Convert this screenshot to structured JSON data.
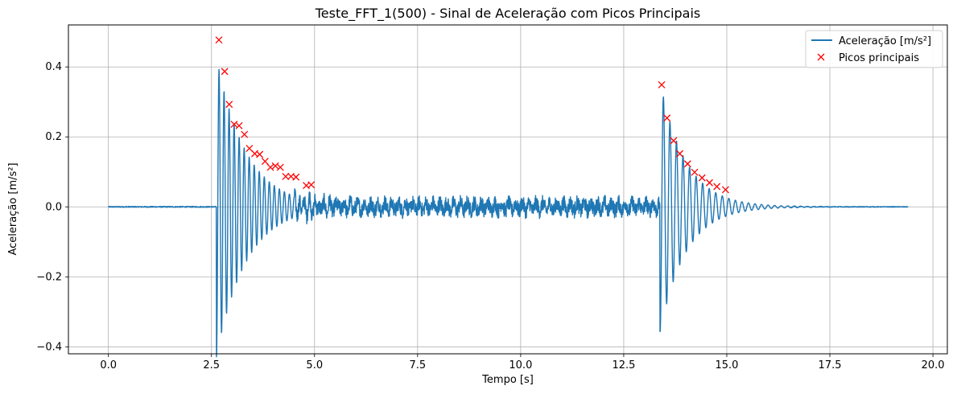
{
  "chart_data": {
    "type": "line",
    "title": "Teste_FFT_1(500) - Sinal de Aceleração com Picos Principais",
    "xlabel": "Tempo [s]",
    "ylabel": "Aceleração [m/s²]",
    "xlim": [
      -0.97,
      20.35
    ],
    "ylim": [
      -0.42,
      0.52
    ],
    "xticks": [
      0.0,
      2.5,
      5.0,
      7.5,
      10.0,
      12.5,
      15.0,
      17.5,
      20.0
    ],
    "xtick_labels": [
      "0.0",
      "2.5",
      "5.0",
      "7.5",
      "10.0",
      "12.5",
      "15.0",
      "17.5",
      "20.0"
    ],
    "yticks": [
      -0.4,
      -0.2,
      0.0,
      0.2,
      0.4
    ],
    "ytick_labels": [
      "−0.4",
      "−0.2",
      "0.0",
      "0.2",
      "0.4"
    ],
    "grid": true,
    "legend_position": "top-right",
    "series": [
      {
        "name": "Aceleração [m/s²]",
        "kind": "line",
        "color": "#1f77b4",
        "signal": {
          "duration": 19.4,
          "noise_until": 2.6,
          "noise_amp": 0.003,
          "events": [
            {
              "t0": 2.62,
              "freq": 8.2,
              "amp": 0.43,
              "decay": 0.72,
              "end": 13.38
            },
            {
              "t0": 13.38,
              "freq": 6.3,
              "amp": 0.36,
              "decay": 0.62,
              "end": 19.4
            }
          ],
          "mid_noise_amp": 0.02
        }
      },
      {
        "name": "Picos principais",
        "kind": "marker",
        "marker": "x",
        "color": "#ff0000",
        "x": [
          2.68,
          2.82,
          2.93,
          3.05,
          3.17,
          3.3,
          3.42,
          3.55,
          3.67,
          3.8,
          3.93,
          4.05,
          4.17,
          4.3,
          4.43,
          4.55,
          4.8,
          4.92,
          13.42,
          13.55,
          13.71,
          13.86,
          14.05,
          14.22,
          14.4,
          14.58,
          14.76,
          14.97
        ],
        "y": [
          0.477,
          0.387,
          0.293,
          0.236,
          0.232,
          0.207,
          0.167,
          0.152,
          0.15,
          0.13,
          0.113,
          0.117,
          0.113,
          0.087,
          0.087,
          0.085,
          0.061,
          0.063,
          0.349,
          0.254,
          0.189,
          0.152,
          0.123,
          0.099,
          0.083,
          0.069,
          0.058,
          0.049
        ]
      }
    ]
  }
}
